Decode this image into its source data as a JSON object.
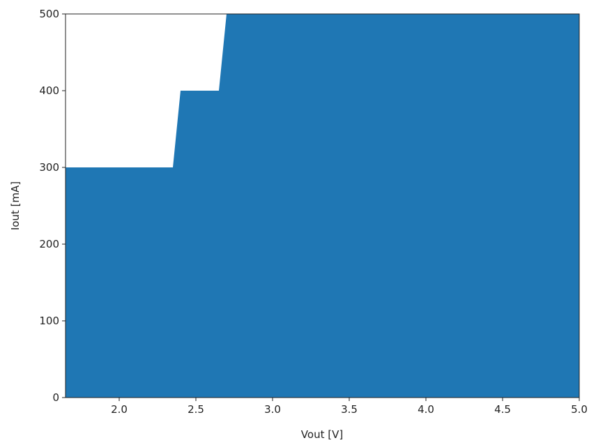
{
  "chart_data": {
    "type": "area",
    "title": "",
    "xlabel": "Vout [V]",
    "ylabel": "Iout [mA]",
    "xlim": [
      1.65,
      5.0
    ],
    "ylim": [
      0,
      500
    ],
    "xticks": [
      "2.0",
      "2.5",
      "3.0",
      "3.5",
      "4.0",
      "4.5",
      "5.0"
    ],
    "yticks": [
      "0",
      "100",
      "200",
      "300",
      "400",
      "500"
    ],
    "grid": false,
    "fill_color": "#1f77b4",
    "series": [
      {
        "x": [
          1.65,
          2.35,
          2.4,
          2.65,
          2.7,
          5.0
        ],
        "y": [
          300,
          300,
          400,
          400,
          500,
          500
        ]
      }
    ]
  }
}
